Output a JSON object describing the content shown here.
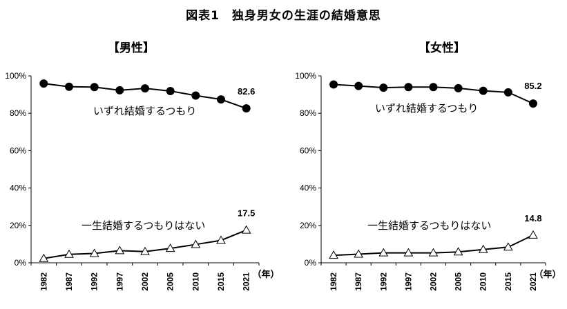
{
  "figure": {
    "title": "図表1　独身男女の生涯の結婚意思"
  },
  "chart_data": [
    {
      "type": "line",
      "title": "【男性】",
      "categories": [
        "1982",
        "1987",
        "1992",
        "1997",
        "2002",
        "2005",
        "2010",
        "2015",
        "2021"
      ],
      "x_unit": "（年）",
      "ylim": [
        0,
        100
      ],
      "yticks": [
        "0%",
        "20%",
        "40%",
        "60%",
        "80%",
        "100%"
      ],
      "series": [
        {
          "name": "いずれ結婚するつもり",
          "marker": "filled-circle",
          "values": [
            95.9,
            94.2,
            94.0,
            92.3,
            93.3,
            91.9,
            89.5,
            87.4,
            82.6
          ],
          "end_label": "82.6"
        },
        {
          "name": "一生結婚するつもりはない",
          "marker": "open-triangle",
          "values": [
            2.3,
            4.5,
            5.0,
            6.5,
            6.0,
            7.7,
            9.8,
            12.0,
            17.5
          ],
          "end_label": "17.5"
        }
      ]
    },
    {
      "type": "line",
      "title": "【女性】",
      "categories": [
        "1982",
        "1987",
        "1992",
        "1997",
        "2002",
        "2005",
        "2010",
        "2015",
        "2021"
      ],
      "x_unit": "（年）",
      "ylim": [
        0,
        100
      ],
      "yticks": [
        "0%",
        "20%",
        "40%",
        "60%",
        "80%",
        "100%"
      ],
      "series": [
        {
          "name": "いずれ結婚するつもり",
          "marker": "filled-circle",
          "values": [
            95.4,
            94.6,
            93.7,
            94.0,
            94.0,
            93.4,
            92.0,
            91.2,
            85.2
          ],
          "end_label": "85.2"
        },
        {
          "name": "一生結婚するつもりはない",
          "marker": "open-triangle",
          "values": [
            4.0,
            4.6,
            5.3,
            5.3,
            5.3,
            5.8,
            7.1,
            8.4,
            14.8
          ],
          "end_label": "14.8"
        }
      ]
    }
  ]
}
